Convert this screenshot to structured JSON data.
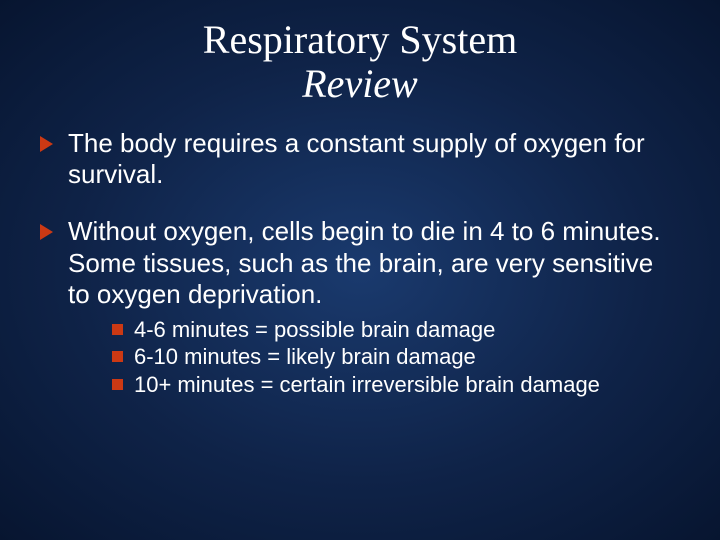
{
  "colors": {
    "background_center": "#1a3a6e",
    "background_mid": "#0f2348",
    "background_edge": "#071530",
    "text": "#ffffff",
    "bullet_accent": "#cc3914"
  },
  "typography": {
    "title_font": "Times New Roman",
    "title_size_pt": 40,
    "body_font": "Arial",
    "body_size_pt": 26,
    "sub_size_pt": 22
  },
  "slide": {
    "title_line1": "Respiratory System",
    "title_line2": "Review",
    "bullets": [
      {
        "text": "The body requires a constant supply of oxygen for survival."
      },
      {
        "text": "Without oxygen, cells begin to die in 4 to 6 minutes. Some tissues, such as the brain, are very sensitive to oxygen deprivation.",
        "sub": [
          "4-6 minutes = possible brain damage",
          "6-10 minutes = likely brain damage",
          "10+ minutes = certain irreversible brain damage"
        ]
      }
    ]
  }
}
